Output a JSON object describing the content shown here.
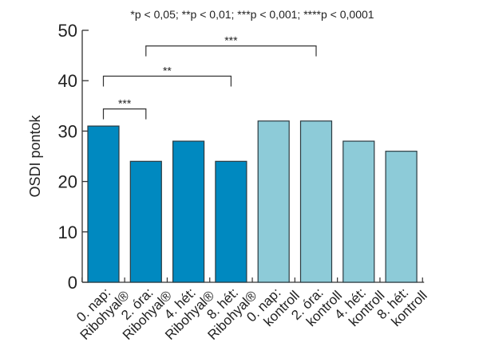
{
  "chart_data": {
    "type": "bar",
    "title": "*p < 0,05; **p < 0,01; ***p < 0,001; ****p < 0,0001",
    "xlabel": "",
    "ylabel": "OSDI pontok",
    "ylim": [
      0,
      50
    ],
    "yticks": [
      "0",
      "10",
      "20",
      "30",
      "40",
      "50"
    ],
    "grid": false,
    "categories": [
      [
        "0. nap:",
        "Ribohyal®"
      ],
      [
        "2. óra:",
        "Ribohyal®"
      ],
      [
        "4. hét:",
        "Ribohyal®"
      ],
      [
        "8. hét:",
        "Ribohyal®"
      ],
      [
        "0. nap:",
        "kontroll"
      ],
      [
        "2. óra:",
        "kontroll"
      ],
      [
        "4. hét:",
        "kontroll"
      ],
      [
        "8. hét:",
        "kontroll"
      ]
    ],
    "values": [
      31,
      24,
      28,
      24,
      32,
      32,
      28,
      26
    ],
    "groups": [
      "Ribohyal",
      "Ribohyal",
      "Ribohyal",
      "Ribohyal",
      "kontroll",
      "kontroll",
      "kontroll",
      "kontroll"
    ],
    "colors": {
      "Ribohyal": "#0089c0",
      "kontroll": "#8dcbd8",
      "edge": "#2b3a40",
      "axis": "#333333"
    },
    "significance": [
      {
        "from": 0,
        "to": 1,
        "label": "***",
        "level": 34.4
      },
      {
        "from": 0,
        "to": 3,
        "label": "**",
        "level": 40.9
      },
      {
        "from": 1,
        "to": 5,
        "label": "***",
        "level": 46.9
      }
    ]
  }
}
